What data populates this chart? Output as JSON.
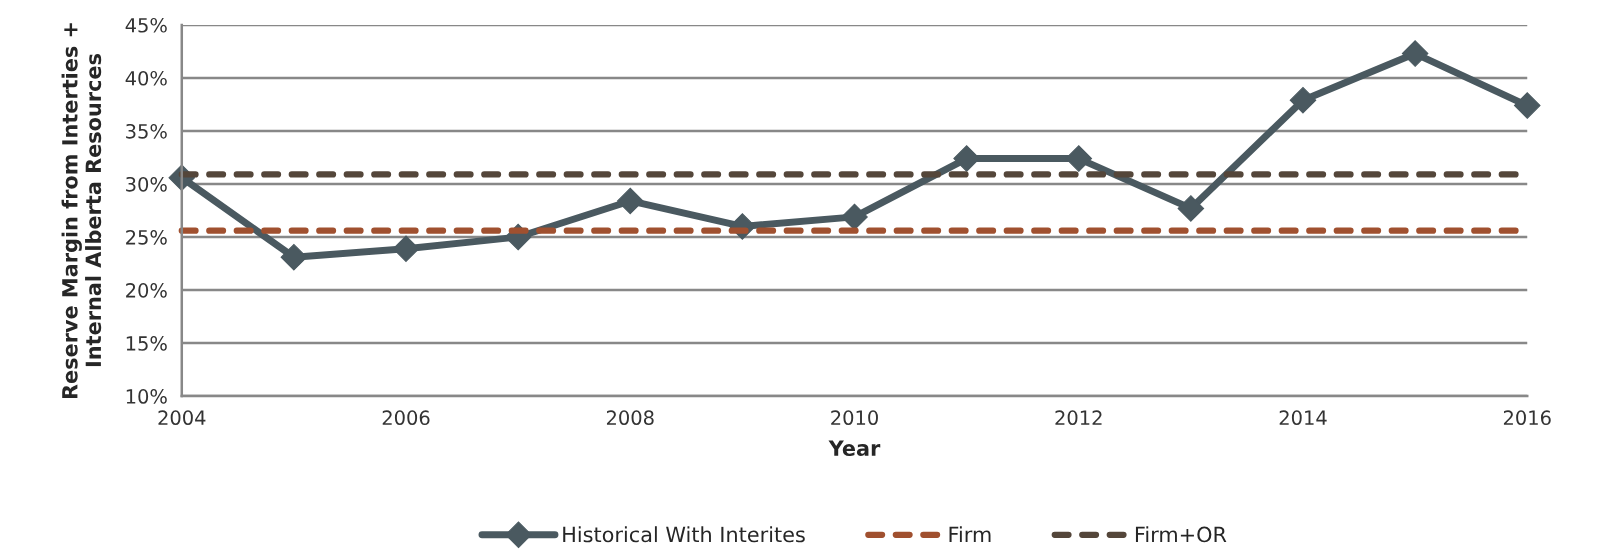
{
  "chart_data": {
    "type": "line",
    "xlabel": "Year",
    "ylabel": "Reserve Margin from Interties +\nInternal Alberta Resources",
    "x": [
      2004,
      2005,
      2006,
      2007,
      2008,
      2009,
      2010,
      2011,
      2012,
      2013,
      2014,
      2015,
      2016
    ],
    "series": [
      {
        "name": "Historical With Interites",
        "color": "#4a5960",
        "marker": "diamond",
        "line_style": "solid",
        "values": [
          30.6,
          23.1,
          23.9,
          25.0,
          28.4,
          26.0,
          26.9,
          32.4,
          32.4,
          27.7,
          37.9,
          42.3,
          37.4
        ]
      },
      {
        "name": "Firm",
        "color": "#a0502f",
        "marker": "none",
        "line_style": "dashed",
        "values": [
          25.6,
          25.6,
          25.6,
          25.6,
          25.6,
          25.6,
          25.6,
          25.6,
          25.6,
          25.6,
          25.6,
          25.6,
          25.6
        ]
      },
      {
        "name": "Firm+OR",
        "color": "#54463a",
        "marker": "none",
        "line_style": "dashed",
        "values": [
          30.9,
          30.9,
          30.9,
          30.9,
          30.9,
          30.9,
          30.9,
          30.9,
          30.9,
          30.9,
          30.9,
          30.9,
          30.9
        ]
      }
    ],
    "xlim": [
      2004,
      2016
    ],
    "xticks": [
      2004,
      2006,
      2008,
      2010,
      2012,
      2014,
      2016
    ],
    "ylim": [
      10,
      45
    ],
    "yticks": [
      {
        "value": 10,
        "label": "10%"
      },
      {
        "value": 15,
        "label": "15%"
      },
      {
        "value": 20,
        "label": "20%"
      },
      {
        "value": 25,
        "label": "25%"
      },
      {
        "value": 30,
        "label": "30%"
      },
      {
        "value": 35,
        "label": "35%"
      },
      {
        "value": 40,
        "label": "40%"
      },
      {
        "value": 45,
        "label": "45%"
      }
    ],
    "grid": "y",
    "legend": "bottom"
  }
}
